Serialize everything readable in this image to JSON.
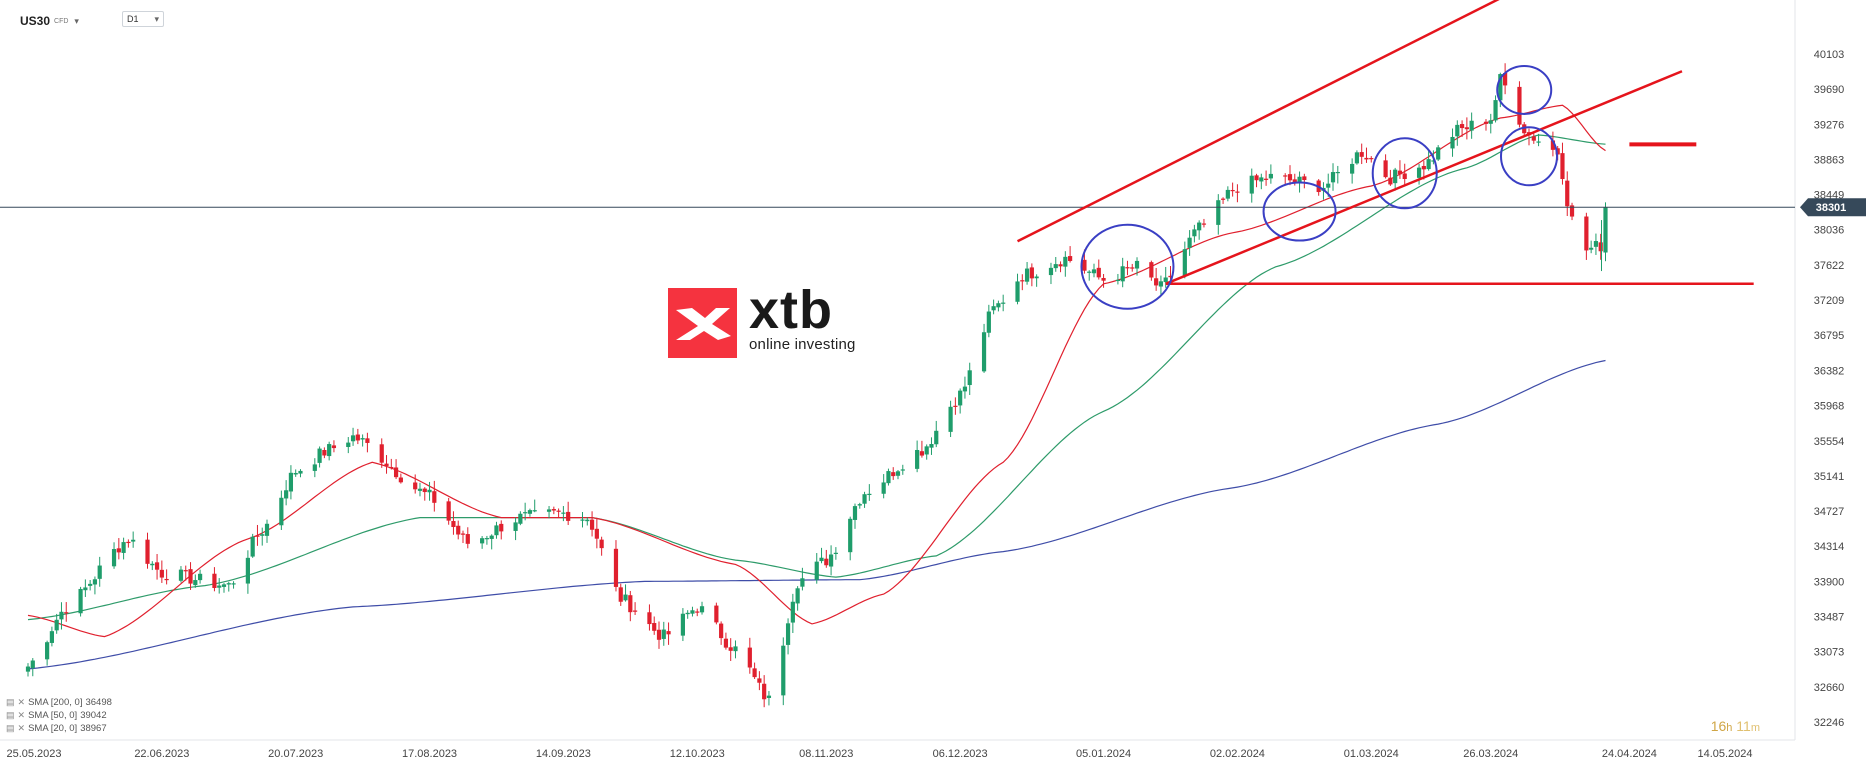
{
  "header": {
    "symbol": "US30",
    "symbol_tag": "CFD",
    "timeframe": "D1"
  },
  "logo": {
    "word": "xtb",
    "tagline": "online investing"
  },
  "countdown": {
    "hours": "16",
    "hours_unit": "h",
    "minutes": "11",
    "minutes_unit": "m"
  },
  "colors": {
    "bull": "#1f9d6b",
    "bear": "#e0202e",
    "sma20": "#e0202e",
    "sma50": "#2e9b6a",
    "sma200": "#3f4da8",
    "annotation_line": "#e5141c",
    "annotation_circle": "#3a3fc4",
    "price_line": "#36495a",
    "price_flag": "#36495a"
  },
  "legend": [
    {
      "label": "SMA [200, 0]",
      "value": "36498"
    },
    {
      "label": "SMA [50, 0]",
      "value": "39042"
    },
    {
      "label": "SMA [20, 0]",
      "value": "38967"
    }
  ],
  "chart_data": {
    "type": "candlestick",
    "y_ticks": [
      40103,
      39690,
      39276,
      38863,
      38449,
      38036,
      37622,
      37209,
      36795,
      36382,
      35968,
      35554,
      35141,
      34727,
      34314,
      33900,
      33487,
      33073,
      32660,
      32246
    ],
    "ylim": [
      32246,
      41200
    ],
    "x_tick_labels": [
      "25.05.2023",
      "22.06.2023",
      "20.07.2023",
      "17.08.2023",
      "14.09.2023",
      "12.10.2023",
      "08.11.2023",
      "06.12.2023",
      "05.01.2024",
      "02.02.2024",
      "01.03.2024",
      "26.03.2024",
      "24.04.2024",
      "14.05.2024"
    ],
    "current_price": 38301,
    "close_anchors": [
      [
        "2023-05-25",
        32900
      ],
      [
        "2023-06-02",
        33600
      ],
      [
        "2023-06-15",
        34400
      ],
      [
        "2023-06-22",
        34000
      ],
      [
        "2023-07-06",
        33850
      ],
      [
        "2023-07-13",
        34500
      ],
      [
        "2023-07-20",
        35200
      ],
      [
        "2023-07-27",
        35450
      ],
      [
        "2023-08-01",
        35600
      ],
      [
        "2023-08-17",
        34900
      ],
      [
        "2023-08-25",
        34350
      ],
      [
        "2023-09-05",
        34650
      ],
      [
        "2023-09-14",
        34700
      ],
      [
        "2023-09-19",
        34650
      ],
      [
        "2023-09-26",
        33700
      ],
      [
        "2023-10-05",
        33250
      ],
      [
        "2023-10-12",
        33600
      ],
      [
        "2023-10-20",
        33100
      ],
      [
        "2023-10-27",
        32500
      ],
      [
        "2023-11-02",
        33900
      ],
      [
        "2023-11-08",
        34150
      ],
      [
        "2023-11-16",
        34950
      ],
      [
        "2023-11-28",
        35450
      ],
      [
        "2023-12-06",
        36100
      ],
      [
        "2023-12-13",
        37100
      ],
      [
        "2023-12-19",
        37500
      ],
      [
        "2023-12-28",
        37700
      ],
      [
        "2024-01-05",
        37450
      ],
      [
        "2024-01-12",
        37600
      ],
      [
        "2024-01-17",
        37350
      ],
      [
        "2024-01-25",
        38050
      ],
      [
        "2024-02-02",
        38550
      ],
      [
        "2024-02-09",
        38650
      ],
      [
        "2024-02-20",
        38550
      ],
      [
        "2024-02-28",
        38950
      ],
      [
        "2024-03-05",
        38650
      ],
      [
        "2024-03-12",
        38800
      ],
      [
        "2024-03-19",
        39200
      ],
      [
        "2024-03-26",
        39350
      ],
      [
        "2024-03-28",
        39800
      ],
      [
        "2024-04-03",
        39150
      ],
      [
        "2024-04-09",
        38950
      ],
      [
        "2024-04-12",
        38150
      ],
      [
        "2024-04-15",
        37800
      ],
      [
        "2024-04-18",
        37850
      ],
      [
        "2024-04-19",
        38301
      ]
    ],
    "sma200_anchors": [
      [
        "2023-05-25",
        32870
      ],
      [
        "2023-08-01",
        33600
      ],
      [
        "2023-10-01",
        33900
      ],
      [
        "2023-11-15",
        33920
      ],
      [
        "2023-12-15",
        34250
      ],
      [
        "2024-02-01",
        35000
      ],
      [
        "2024-03-15",
        35750
      ],
      [
        "2024-04-19",
        36498
      ]
    ],
    "sma50_anchors": [
      [
        "2023-05-25",
        33450
      ],
      [
        "2023-07-01",
        33850
      ],
      [
        "2023-08-15",
        34650
      ],
      [
        "2023-09-20",
        34650
      ],
      [
        "2023-10-20",
        34150
      ],
      [
        "2023-11-10",
        33950
      ],
      [
        "2023-12-01",
        34200
      ],
      [
        "2024-01-05",
        35900
      ],
      [
        "2024-02-10",
        37600
      ],
      [
        "2024-03-20",
        38750
      ],
      [
        "2024-04-05",
        39150
      ],
      [
        "2024-04-19",
        39042
      ]
    ],
    "sma20_anchors": [
      [
        "2023-05-25",
        33500
      ],
      [
        "2023-06-10",
        33250
      ],
      [
        "2023-07-10",
        34400
      ],
      [
        "2023-08-05",
        35300
      ],
      [
        "2023-09-01",
        34650
      ],
      [
        "2023-09-20",
        34650
      ],
      [
        "2023-10-20",
        34100
      ],
      [
        "2023-11-05",
        33400
      ],
      [
        "2023-11-20",
        33750
      ],
      [
        "2023-12-15",
        35300
      ],
      [
        "2024-01-05",
        37400
      ],
      [
        "2024-02-01",
        38000
      ],
      [
        "2024-03-01",
        38550
      ],
      [
        "2024-03-28",
        39350
      ],
      [
        "2024-04-10",
        39500
      ],
      [
        "2024-04-19",
        38967
      ]
    ],
    "annotations": {
      "channel_upper": [
        [
          "2023-12-18",
          37900
        ],
        [
          "2024-04-02",
          40900
        ]
      ],
      "channel_lower": [
        [
          "2024-01-18",
          37400
        ],
        [
          "2024-05-05",
          39900
        ]
      ],
      "support_level": {
        "from": "2024-01-18",
        "to": "2024-05-20",
        "value": 37400
      },
      "target_marker": {
        "from": "2024-04-24",
        "to": "2024-05-08",
        "value": 39040
      },
      "circles": [
        {
          "date": "2024-01-10",
          "value": 37600
        },
        {
          "date": "2024-02-15",
          "value": 38250
        },
        {
          "date": "2024-03-08",
          "value": 38700
        },
        {
          "date": "2024-04-02",
          "value": 39680
        },
        {
          "date": "2024-04-03",
          "value": 38900
        }
      ]
    }
  }
}
